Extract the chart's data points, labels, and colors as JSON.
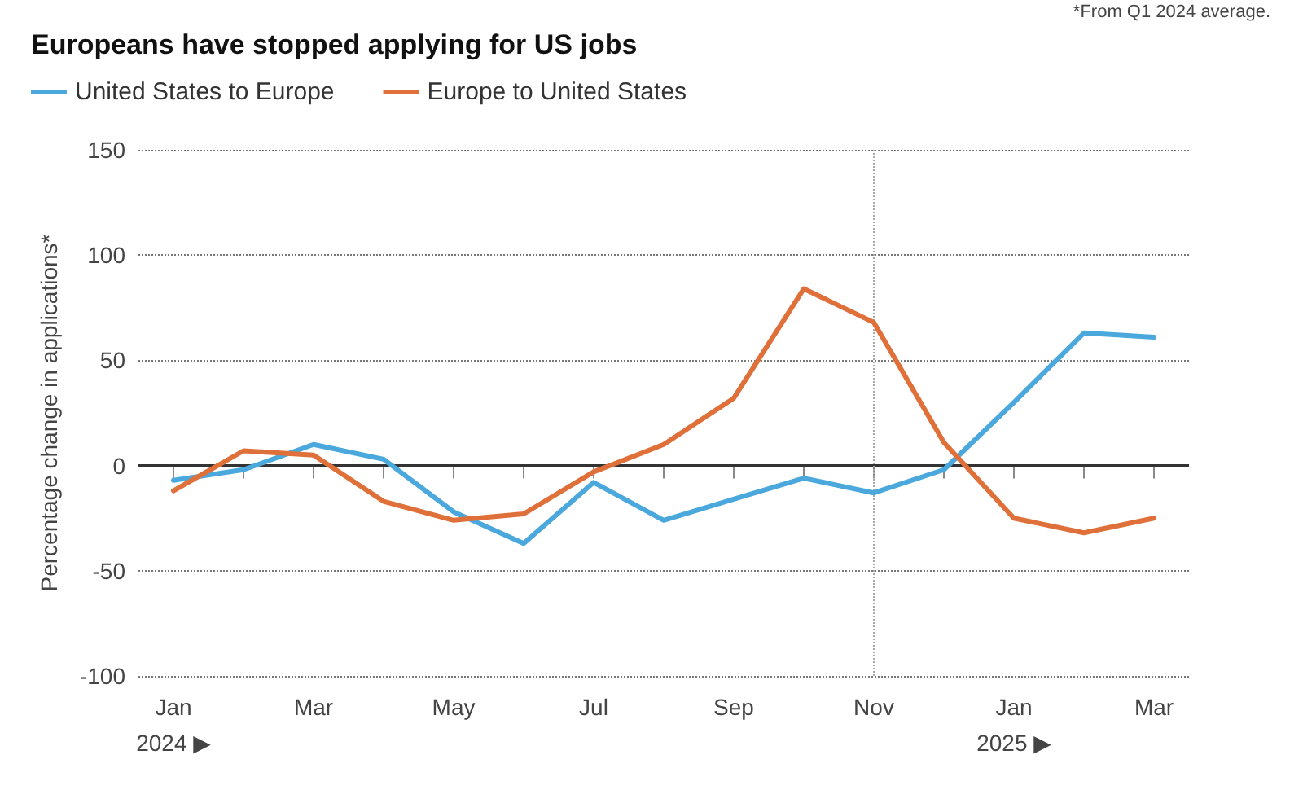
{
  "chart_data": {
    "type": "line",
    "title": "Europeans have stopped applying for US jobs",
    "ylabel": "Percentage change in applications*",
    "annotations": [
      "*From Q1 2024 average."
    ],
    "categories": [
      "Jan\n2024 ▶",
      null,
      "Mar",
      null,
      "May",
      null,
      "Jul",
      null,
      "Sep",
      null,
      "Nov",
      null,
      "Jan\n2025 ▶",
      null,
      "Mar"
    ],
    "series": [
      {
        "name": "United States to Europe",
        "color": "#4aa8dc",
        "values": [
          -7,
          -2,
          10,
          3,
          -22,
          -37,
          -8,
          -26,
          -16,
          -6,
          -13,
          -2,
          30,
          63,
          61
        ]
      },
      {
        "name": "Europe to United States",
        "color": "#e0703a",
        "values": [
          -12,
          7,
          5,
          -17,
          -26,
          -23,
          -3,
          10,
          32,
          84,
          68,
          11,
          -25,
          -32,
          -25
        ]
      }
    ],
    "ylim": [
      -100,
      150
    ],
    "yticks": [
      -100,
      -50,
      0,
      50,
      100,
      150
    ],
    "grid": "y",
    "legend": "top left",
    "marker": "none",
    "line_style": "solid",
    "ref_lines": [
      {
        "axis": "y",
        "value": 0,
        "color": "#333333",
        "line_style": "solid"
      },
      {
        "axis": "x",
        "value": "Nov",
        "color": "#aaaaaa",
        "line_style": "dotted"
      }
    ]
  }
}
